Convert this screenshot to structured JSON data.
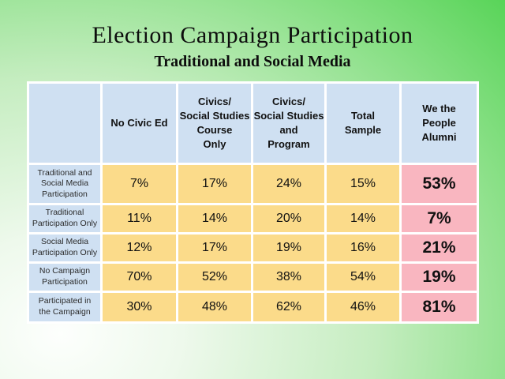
{
  "slide": {
    "title": "Election Campaign Participation",
    "subtitle": "Traditional and Social Media"
  },
  "table": {
    "header": {
      "columns": [
        "",
        "No Civic Ed",
        "Civics/\nSocial Studies\nCourse\nOnly",
        "Civics/\nSocial Studies\nand\nProgram",
        "Total\nSample",
        "We the\nPeople\nAlumni"
      ]
    },
    "rows": [
      {
        "label": "Traditional and Social Media Participation",
        "values": [
          "7%",
          "17%",
          "24%",
          "15%",
          "53%"
        ]
      },
      {
        "label": "Traditional Participation Only",
        "values": [
          "11%",
          "14%",
          "20%",
          "14%",
          "7%"
        ]
      },
      {
        "label": "Social Media Participation Only",
        "values": [
          "12%",
          "17%",
          "19%",
          "16%",
          "21%"
        ]
      },
      {
        "label": "No Campaign Participation",
        "values": [
          "70%",
          "52%",
          "38%",
          "54%",
          "19%"
        ]
      },
      {
        "label": "Participated in the Campaign",
        "values": [
          "30%",
          "48%",
          "62%",
          "46%",
          "81%"
        ]
      }
    ]
  },
  "colors": {
    "header_fill": "#cfe0f2",
    "data_fill": "#fbdb8a",
    "alumni_fill": "#f9b6c0",
    "gridline": "#ffffff",
    "background_green": "#58d458",
    "text": "#111111"
  }
}
